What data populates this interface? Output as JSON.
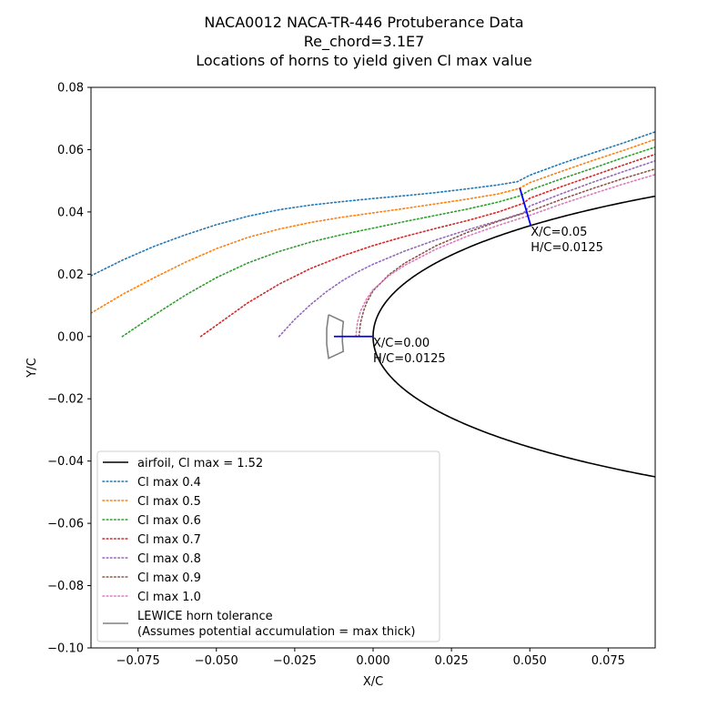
{
  "chart_data": {
    "type": "line",
    "title_lines": [
      "NACA0012 NACA-TR-446 Protuberance Data",
      "Re_chord=3.1E7",
      "Locations of horns to yield given Cl max value"
    ],
    "xlabel": "X/C",
    "ylabel": "Y/C",
    "xlim": [
      -0.09,
      0.09
    ],
    "ylim": [
      -0.1,
      0.08
    ],
    "xticks": [
      -0.075,
      -0.05,
      -0.025,
      0.0,
      0.025,
      0.05,
      0.075
    ],
    "xtick_labels": [
      "−0.075",
      "−0.050",
      "−0.025",
      "0.000",
      "0.025",
      "0.050",
      "0.075"
    ],
    "yticks": [
      -0.1,
      -0.08,
      -0.06,
      -0.04,
      -0.02,
      0.0,
      0.02,
      0.04,
      0.06,
      0.08
    ],
    "ytick_labels": [
      "−0.10",
      "−0.08",
      "−0.06",
      "−0.04",
      "−0.02",
      "0.00",
      "0.02",
      "0.04",
      "0.06",
      "0.08"
    ],
    "grid": false,
    "legend_position": "lower-left",
    "airfoil": {
      "name": "airfoil, Cl max = 1.52",
      "color": "#000000",
      "thickness_ratio": 0.12,
      "x_max": 0.09
    },
    "series": [
      {
        "name": "Cl max 0.4",
        "color": "#1f77b4",
        "x": [
          -0.09,
          -0.08,
          -0.07,
          -0.06,
          -0.05,
          -0.04,
          -0.03,
          -0.02,
          -0.01,
          0.0,
          0.01,
          0.02,
          0.03,
          0.04,
          0.046,
          0.05,
          0.06,
          0.07,
          0.08,
          0.09
        ],
        "y": [
          0.0195,
          0.0245,
          0.0289,
          0.0326,
          0.0359,
          0.0386,
          0.0407,
          0.0422,
          0.0433,
          0.0443,
          0.0452,
          0.0462,
          0.0474,
          0.0487,
          0.0497,
          0.0518,
          0.0555,
          0.0589,
          0.0622,
          0.0657
        ]
      },
      {
        "name": "Cl max 0.5",
        "color": "#ff7f0e",
        "x": [
          -0.09,
          -0.08,
          -0.07,
          -0.06,
          -0.05,
          -0.04,
          -0.03,
          -0.02,
          -0.01,
          0.0,
          0.01,
          0.02,
          0.03,
          0.04,
          0.0465,
          0.05,
          0.06,
          0.07,
          0.08,
          0.09
        ],
        "y": [
          0.0075,
          0.0135,
          0.0188,
          0.0238,
          0.0282,
          0.0318,
          0.0345,
          0.0366,
          0.0383,
          0.0397,
          0.0411,
          0.0426,
          0.0441,
          0.0458,
          0.0475,
          0.0494,
          0.053,
          0.0565,
          0.0598,
          0.0633
        ]
      },
      {
        "name": "Cl max 0.6",
        "color": "#2ca02c",
        "x": [
          -0.08,
          -0.07,
          -0.06,
          -0.05,
          -0.04,
          -0.03,
          -0.02,
          -0.01,
          0.0,
          0.01,
          0.02,
          0.03,
          0.04,
          0.047,
          0.05,
          0.06,
          0.07,
          0.08,
          0.09
        ],
        "y": [
          0.0,
          0.0068,
          0.0132,
          0.0189,
          0.0236,
          0.0273,
          0.0303,
          0.0327,
          0.0348,
          0.0369,
          0.0389,
          0.0409,
          0.0432,
          0.0452,
          0.047,
          0.0506,
          0.054,
          0.0575,
          0.0608
        ]
      },
      {
        "name": "Cl max 0.7",
        "color": "#d62728",
        "x": [
          -0.055,
          -0.05,
          -0.04,
          -0.03,
          -0.02,
          -0.01,
          0.0,
          0.01,
          0.02,
          0.03,
          0.04,
          0.048,
          0.05,
          0.06,
          0.07,
          0.08,
          0.09
        ],
        "y": [
          0.0,
          0.0036,
          0.0108,
          0.0168,
          0.0218,
          0.0258,
          0.0292,
          0.0321,
          0.0347,
          0.0372,
          0.04,
          0.0428,
          0.0444,
          0.0481,
          0.0516,
          0.0551,
          0.0585
        ]
      },
      {
        "name": "Cl max 0.8",
        "color": "#9467bd",
        "x": [
          -0.03,
          -0.025,
          -0.02,
          -0.015,
          -0.01,
          -0.005,
          0.0,
          0.01,
          0.02,
          0.03,
          0.04,
          0.048,
          0.05,
          0.06,
          0.07,
          0.08,
          0.09
        ],
        "y": [
          0.0,
          0.0055,
          0.0102,
          0.0143,
          0.0178,
          0.0207,
          0.0232,
          0.0274,
          0.031,
          0.0342,
          0.0372,
          0.0397,
          0.0419,
          0.0458,
          0.0495,
          0.053,
          0.0564
        ]
      },
      {
        "name": "Cl max 0.9",
        "color": "#8c564b",
        "x": [
          -0.0045,
          -0.004,
          -0.003,
          -0.002,
          0.0,
          0.005,
          0.01,
          0.02,
          0.03,
          0.04,
          0.05,
          0.06,
          0.07,
          0.08,
          0.09
        ],
        "y": [
          0.0,
          0.0045,
          0.0083,
          0.011,
          0.0147,
          0.0198,
          0.0235,
          0.0291,
          0.0334,
          0.037,
          0.0402,
          0.044,
          0.0475,
          0.0508,
          0.0538
        ]
      },
      {
        "name": "Cl max 1.0",
        "color": "#e377c2",
        "x": [
          -0.0055,
          -0.005,
          -0.004,
          -0.002,
          0.0,
          0.005,
          0.01,
          0.02,
          0.03,
          0.04,
          0.05,
          0.06,
          0.07,
          0.08,
          0.09
        ],
        "y": [
          0.0,
          0.0045,
          0.0082,
          0.0122,
          0.015,
          0.0195,
          0.0228,
          0.028,
          0.0322,
          0.0357,
          0.0389,
          0.0425,
          0.0458,
          0.049,
          0.052
        ]
      }
    ],
    "lewice_horn_tolerance": {
      "name": "LEWICE horn tolerance",
      "name_line2": "(Assumes potential accumulation = max thick)",
      "color": "#808080",
      "x": [
        -0.0142,
        -0.0095,
        -0.0098,
        -0.0098,
        -0.0095,
        -0.0142,
        -0.0148,
        -0.0148,
        -0.0142
      ],
      "y": [
        0.007,
        0.0048,
        0.0016,
        -0.0016,
        -0.0048,
        -0.007,
        -0.0025,
        0.0025,
        0.007
      ]
    },
    "horn_markers": [
      {
        "color": "#0000ff",
        "x": [
          -0.0125,
          0.0
        ],
        "y": [
          0.0,
          0.0
        ]
      },
      {
        "color": "#0000ff",
        "x": [
          0.0468,
          0.0503
        ],
        "y": [
          0.0477,
          0.0356
        ]
      }
    ],
    "annotations": [
      {
        "lines": [
          "X/C=0.00",
          "H/C=0.0125"
        ],
        "x": 0.0,
        "y": 0.0
      },
      {
        "lines": [
          "X/C=0.05",
          "H/C=0.0125"
        ],
        "x": 0.0503,
        "y": 0.0356
      }
    ]
  }
}
